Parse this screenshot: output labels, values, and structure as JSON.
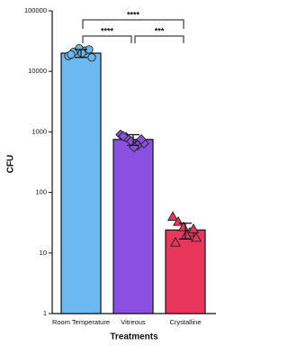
{
  "chart_data": {
    "type": "bar",
    "x_label": "Treatments",
    "y_label": "CFU",
    "categories": [
      "Room Temperature",
      "Vitreous",
      "Crystalline"
    ],
    "values": [
      20000,
      750,
      24
    ],
    "errors": [
      3000,
      150,
      7
    ],
    "colors": [
      "#6cb8f0",
      "#8b4fe2",
      "#e8365c"
    ],
    "markers": [
      "circle",
      "diamond",
      "triangle"
    ],
    "points": [
      [
        18000,
        21000,
        24000,
        22000,
        17000,
        19000,
        23000,
        20000
      ],
      [
        900,
        820,
        700,
        600,
        650,
        850,
        750,
        560
      ],
      [
        40,
        33,
        27,
        22,
        18,
        15,
        25,
        20
      ]
    ],
    "y_scale": "log",
    "ylim": [
      1,
      100000
    ],
    "yticks": [
      1,
      10,
      100,
      1000,
      10000,
      100000
    ],
    "annotations": [
      {
        "from": 0,
        "to": 2,
        "label": "****"
      },
      {
        "from": 0,
        "to": 1,
        "label": "****"
      },
      {
        "from": 1,
        "to": 2,
        "label": "***"
      }
    ]
  }
}
